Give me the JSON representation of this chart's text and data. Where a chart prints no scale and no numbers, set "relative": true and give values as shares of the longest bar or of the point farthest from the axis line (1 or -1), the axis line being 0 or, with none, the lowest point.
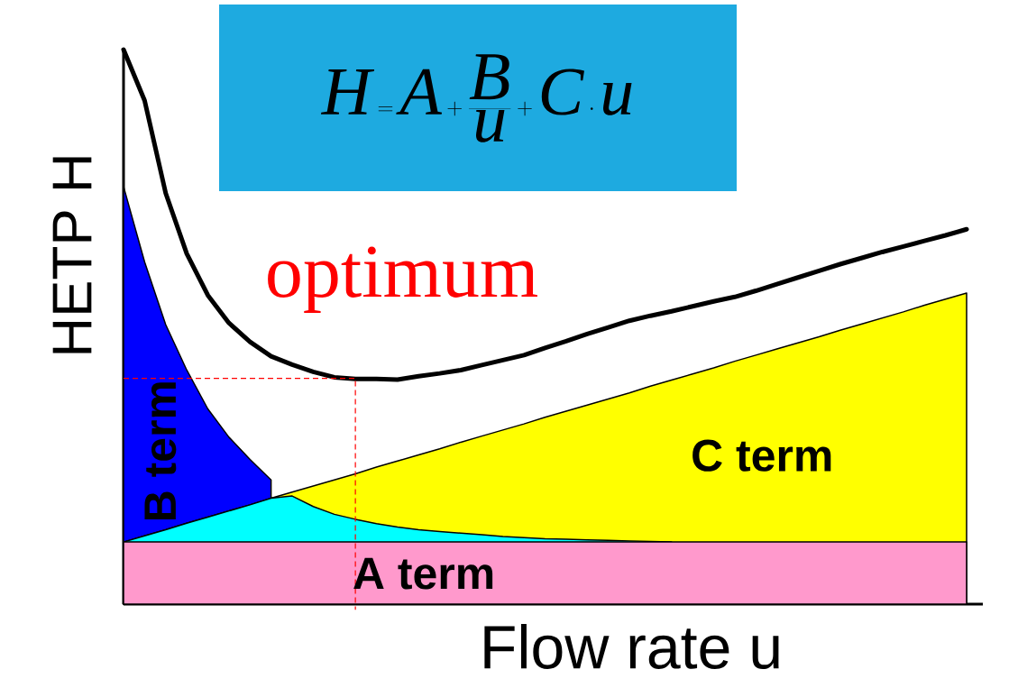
{
  "chart_data": {
    "type": "area",
    "relative": true,
    "xlabel": "Flow rate u",
    "ylabel": "HETP H",
    "categories": [
      null,
      null,
      null,
      null,
      null,
      null,
      null,
      null,
      null,
      null,
      null,
      null,
      null,
      null,
      null,
      null,
      null,
      null,
      null,
      null,
      null,
      null,
      null,
      null,
      null,
      null,
      null,
      null,
      null,
      null,
      null,
      null,
      null,
      null,
      null,
      null,
      null,
      null,
      null,
      null,
      null
    ],
    "annotations": [
      "\\mathit{H}=\\mathit{A}+\\frac{\\mathit{B}}{\\mathit{u}}+\\mathit{C}\\cdot\\mathit{u}",
      "optimum"
    ],
    "ref_lines": [
      {
        "axis": "y",
        "value": 0.407,
        "color": "#ff0000",
        "line_style": "dashed"
      }
    ],
    "series": [
      {
        "name": "B term",
        "color": "#0000ff",
        "values": [
          0.753,
          0.617,
          0.504,
          0.422,
          0.352,
          0.301,
          0.261,
          0.224,
          null,
          null,
          null,
          null,
          null,
          null,
          null,
          null,
          null,
          null,
          null,
          null,
          null,
          null,
          null,
          null,
          null,
          null,
          null,
          null,
          null,
          null,
          null,
          null,
          null,
          null,
          null,
          null,
          null,
          null,
          null,
          null,
          null
        ]
      },
      {
        "name": "C term",
        "color": "#ffff00",
        "values": [
          0.112,
          0.123,
          0.134,
          0.146,
          0.157,
          0.168,
          0.179,
          0.191,
          0.202,
          0.213,
          0.224,
          0.235,
          0.247,
          0.258,
          0.269,
          0.28,
          0.292,
          0.303,
          0.314,
          0.325,
          0.337,
          0.348,
          0.359,
          0.37,
          0.381,
          0.393,
          0.404,
          0.415,
          0.426,
          0.438,
          0.449,
          0.46,
          0.471,
          0.482,
          0.494,
          0.505,
          0.516,
          0.527,
          0.539,
          0.55,
          0.561
        ]
      },
      {
        "color": "#00ffff",
        "values": [
          0.112,
          0.123,
          0.134,
          0.146,
          0.157,
          0.168,
          0.179,
          0.191,
          0.195,
          0.176,
          0.162,
          0.153,
          0.145,
          0.139,
          0.134,
          0.131,
          0.128,
          0.125,
          0.122,
          0.12,
          0.118,
          0.117,
          0.116,
          0.115,
          0.114,
          0.113,
          0.112,
          null,
          null,
          null,
          null,
          null,
          null,
          null,
          null,
          null,
          null,
          null,
          null,
          null,
          null
        ]
      },
      {
        "name": "A term",
        "color": "#ff99cc",
        "values": [
          0.112,
          0.112,
          0.112,
          0.112,
          0.112,
          0.112,
          0.112,
          0.112,
          0.112,
          0.112,
          0.112,
          0.112,
          0.112,
          0.112,
          0.112,
          0.112,
          0.112,
          0.112,
          0.112,
          0.112,
          0.112,
          0.112,
          0.112,
          0.112,
          0.112,
          0.112,
          0.112,
          0.112,
          0.112,
          0.112,
          0.112,
          0.112,
          0.112,
          0.112,
          0.112,
          0.112,
          0.112,
          0.112,
          0.112,
          0.112,
          0.112
        ]
      },
      {
        "type": "line",
        "color": "#000000",
        "values": [
          1.0,
          0.908,
          0.741,
          0.632,
          0.557,
          0.507,
          0.473,
          0.447,
          0.432,
          0.419,
          0.409,
          0.406,
          0.406,
          0.405,
          0.411,
          0.416,
          0.422,
          0.431,
          0.44,
          0.449,
          0.462,
          0.474,
          0.487,
          0.499,
          0.511,
          0.52,
          0.528,
          0.537,
          0.546,
          0.554,
          0.565,
          0.577,
          0.589,
          0.601,
          0.613,
          0.624,
          0.635,
          0.645,
          0.655,
          0.665,
          0.676
        ]
      }
    ]
  }
}
